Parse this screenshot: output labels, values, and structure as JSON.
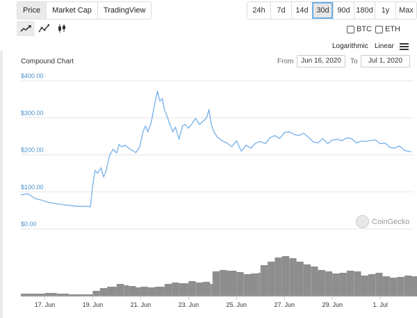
{
  "tabs": [
    "Price",
    "Market Cap",
    "TradingView"
  ],
  "ranges": [
    "24h",
    "7d",
    "14d",
    "30d",
    "90d",
    "180d",
    "1y",
    "Max"
  ],
  "active_range": "30d",
  "chart_types": [
    "line-chart-icon",
    "ohlc-line-icon",
    "candlestick-icon"
  ],
  "compare": {
    "btc": "BTC",
    "eth": "ETH"
  },
  "scale": {
    "log": "Logarithmic",
    "linear": "Linear"
  },
  "chart_header": {
    "title": "Compound Chart",
    "from_label": "From",
    "from_value": "Jun 16, 2020",
    "to_label": "To",
    "to_value": "Jul 1, 2020"
  },
  "watermark": "CoinGecko",
  "colors": {
    "line": "#7cb5ec",
    "volume": "#8e8e8e",
    "axis_text": "#4a90c8"
  },
  "chart_data": {
    "type": "line",
    "ylim": [
      0,
      400
    ],
    "y_ticks": [
      "$0.00",
      "$100.00",
      "$200.00",
      "$300.00",
      "$400.00"
    ],
    "x_ticks": [
      "17. Jun",
      "19. Jun",
      "21. Jun",
      "23. Jun",
      "25. Jun",
      "27. Jun",
      "29. Jun",
      "1. Jul"
    ],
    "x_range_days": [
      16.0,
      32.3
    ],
    "price_series": {
      "x": [
        16.0,
        16.3,
        16.6,
        16.9,
        17.2,
        17.5,
        17.8,
        18.1,
        18.4,
        18.7,
        18.9,
        19.0,
        19.1,
        19.2,
        19.35,
        19.45,
        19.55,
        19.7,
        19.85,
        20.0,
        20.1,
        20.2,
        20.35,
        20.5,
        20.7,
        20.8,
        20.95,
        21.1,
        21.2,
        21.3,
        21.45,
        21.55,
        21.7,
        21.8,
        21.9,
        22.0,
        22.1,
        22.2,
        22.35,
        22.45,
        22.6,
        22.75,
        22.85,
        23.0,
        23.15,
        23.3,
        23.45,
        23.6,
        23.75,
        23.85,
        23.95,
        24.05,
        24.2,
        24.4,
        24.6,
        24.8,
        25.0,
        25.2,
        25.4,
        25.6,
        25.8,
        26.0,
        26.2,
        26.4,
        26.6,
        26.8,
        27.0,
        27.2,
        27.4,
        27.6,
        27.8,
        28.0,
        28.2,
        28.4,
        28.6,
        28.8,
        29.0,
        29.2,
        29.4,
        29.6,
        29.8,
        30.0,
        30.2,
        30.4,
        30.6,
        30.8,
        31.0,
        31.2,
        31.4,
        31.6,
        31.8,
        32.0,
        32.3
      ],
      "y": [
        92,
        95,
        82,
        77,
        71,
        68,
        65,
        63,
        61,
        61,
        60,
        118,
        158,
        150,
        165,
        140,
        155,
        198,
        215,
        205,
        228,
        222,
        226,
        218,
        210,
        206,
        220,
        262,
        278,
        262,
        290,
        326,
        372,
        345,
        352,
        320,
        305,
        285,
        262,
        275,
        242,
        278,
        282,
        272,
        285,
        298,
        282,
        290,
        300,
        322,
        282,
        262,
        248,
        238,
        232,
        222,
        238,
        210,
        226,
        218,
        232,
        236,
        230,
        246,
        252,
        244,
        260,
        262,
        255,
        252,
        258,
        248,
        235,
        232,
        244,
        230,
        240,
        242,
        238,
        246,
        244,
        232,
        237,
        236,
        239,
        240,
        230,
        232,
        220,
        218,
        224,
        212,
        208
      ]
    },
    "volume_series": {
      "x": [
        16.0,
        16.5,
        17.0,
        17.5,
        18.0,
        18.5,
        18.9,
        19.0,
        19.3,
        19.6,
        20.0,
        20.3,
        20.5,
        20.8,
        21.0,
        21.3,
        21.6,
        22.0,
        22.3,
        22.6,
        23.0,
        23.3,
        23.6,
        23.9,
        24.0,
        24.3,
        24.6,
        25.0,
        25.3,
        25.6,
        25.9,
        26.0,
        26.3,
        26.6,
        26.9,
        27.2,
        27.5,
        27.8,
        28.1,
        28.4,
        28.7,
        29.0,
        29.3,
        29.6,
        29.9,
        30.2,
        30.5,
        30.8,
        31.1,
        31.4,
        31.7,
        32.0,
        32.3
      ],
      "y": [
        4,
        4,
        5,
        4,
        3,
        3,
        3,
        8,
        12,
        14,
        18,
        16,
        15,
        13,
        14,
        13,
        14,
        18,
        20,
        19,
        22,
        20,
        21,
        18,
        36,
        38,
        37,
        35,
        32,
        33,
        34,
        45,
        50,
        56,
        58,
        55,
        50,
        46,
        43,
        38,
        36,
        33,
        34,
        37,
        36,
        30,
        32,
        34,
        29,
        27,
        28,
        30,
        29
      ]
    }
  }
}
